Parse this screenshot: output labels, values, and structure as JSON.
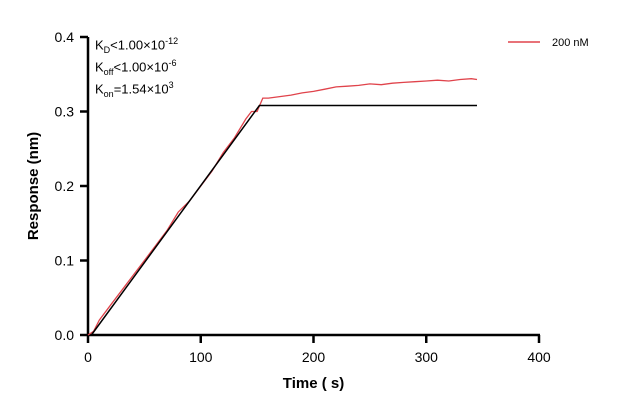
{
  "chart_data": {
    "type": "line",
    "xlabel": "Time ( s)",
    "ylabel": "Response (nm)",
    "xlim": [
      0,
      400
    ],
    "ylim": [
      0,
      0.4
    ],
    "xticks": [
      "0",
      "100",
      "200",
      "300",
      "400"
    ],
    "yticks": [
      "0.0",
      "0.1",
      "0.2",
      "0.3",
      "0.4"
    ],
    "grid": false,
    "legend_position": "top-right",
    "annotations": {
      "kd": {
        "sym": "K",
        "sub": "D",
        "rel": "<1.00×10",
        "exp": "-12"
      },
      "koff": {
        "sym": "K",
        "sub": "off",
        "rel": "<1.00×10",
        "exp": "-6"
      },
      "kon": {
        "sym": "K",
        "sub": "on",
        "rel": "=1.54×10",
        "exp": "3"
      }
    },
    "series": [
      {
        "name": "200 nM",
        "color": "#e0434b",
        "x": [
          0,
          5,
          10,
          20,
          30,
          40,
          50,
          60,
          70,
          80,
          90,
          100,
          110,
          120,
          130,
          140,
          145,
          150,
          155,
          160,
          170,
          180,
          190,
          200,
          210,
          220,
          230,
          240,
          250,
          260,
          270,
          280,
          290,
          300,
          310,
          320,
          330,
          340,
          345
        ],
        "y": [
          0,
          0.005,
          0.02,
          0.04,
          0.06,
          0.08,
          0.1,
          0.12,
          0.14,
          0.165,
          0.18,
          0.2,
          0.22,
          0.245,
          0.265,
          0.29,
          0.3,
          0.3,
          0.318,
          0.318,
          0.32,
          0.322,
          0.325,
          0.327,
          0.33,
          0.333,
          0.334,
          0.335,
          0.337,
          0.336,
          0.338,
          0.339,
          0.34,
          0.341,
          0.342,
          0.341,
          0.343,
          0.344,
          0.343
        ]
      },
      {
        "color": "#000000",
        "x": [
          3,
          152,
          345
        ],
        "y": [
          0,
          0.308,
          0.308
        ]
      }
    ]
  }
}
